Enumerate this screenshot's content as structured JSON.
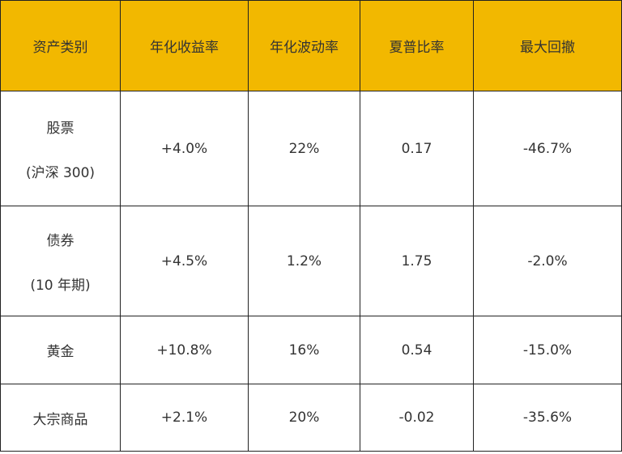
{
  "table": {
    "header": [
      "资产类别",
      "年化收益率",
      "年化波动率",
      "夏普比率",
      "最大回撤"
    ],
    "rows": [
      [
        [
          "股票",
          "(沪深 300)"
        ],
        "+4.0%",
        "22%",
        "0.17",
        "-46.7%"
      ],
      [
        [
          "债券",
          "(10 年期)"
        ],
        "+4.5%",
        "1.2%",
        "1.75",
        "-2.0%"
      ],
      [
        [
          "黄金"
        ],
        "+10.8%",
        "16%",
        "0.54",
        "-15.0%"
      ],
      [
        [
          "大宗商品"
        ],
        "+2.1%",
        "20%",
        "-0.02",
        "-35.6%"
      ]
    ]
  }
}
